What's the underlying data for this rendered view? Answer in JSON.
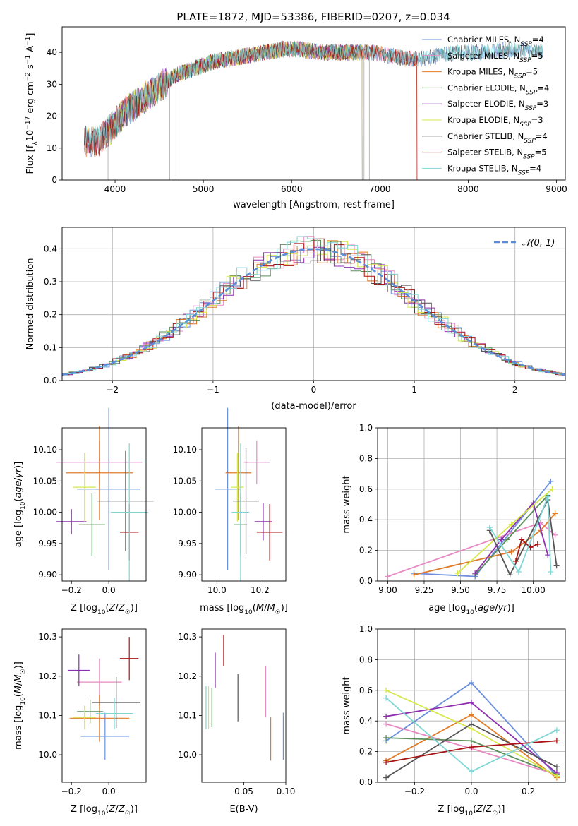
{
  "figure": {
    "title": "PLATE=1872, MJD=53386, FIBERID=0207, z=0.034"
  },
  "colors": {
    "chabrier_miles": "#6a8fdc",
    "salpeter_miles": "#e78ac3",
    "kroupa_miles": "#e07b28",
    "chabrier_elodie": "#5a8f5a",
    "salpeter_elodie": "#8e2fb0",
    "kroupa_elodie": "#d6e84a",
    "chabrier_stelib": "#555555",
    "salpeter_stelib": "#a81414",
    "kroupa_stelib": "#7fd6d6",
    "gaussian": "#5b8ed6",
    "grid": "#b0b0b0"
  },
  "chart_data": [
    {
      "id": "spectrum",
      "type": "line",
      "title": "PLATE=1872, MJD=53386, FIBERID=0207, z=0.034",
      "xlabel": "wavelength [Angstrom, rest frame]",
      "ylabel": "Flux [f_λ 10^-17 erg cm^-2 s^-1 A^-1]",
      "xlim": [
        3400,
        9100
      ],
      "ylim": [
        0,
        48
      ],
      "xticks": [
        4000,
        5000,
        6000,
        7000,
        8000,
        9000
      ],
      "yticks": [
        0,
        10,
        20,
        30,
        40
      ],
      "grid": false,
      "legend_position": "right",
      "series": [
        {
          "name": "Chabrier MILES, N_SSP=4",
          "color_key": "chabrier_miles",
          "range": [
            3650,
            8850
          ]
        },
        {
          "name": "Salpeter MILES, N_SSP=5",
          "color_key": "salpeter_miles",
          "range": [
            3650,
            7420
          ]
        },
        {
          "name": "Kroupa MILES, N_SSP=5",
          "color_key": "kroupa_miles",
          "range": [
            3650,
            7420
          ]
        },
        {
          "name": "Chabrier ELODIE, N_SSP=4",
          "color_key": "chabrier_elodie",
          "range": [
            3900,
            6800
          ]
        },
        {
          "name": "Salpeter ELODIE, N_SSP=3",
          "color_key": "salpeter_elodie",
          "range": [
            3900,
            6800
          ]
        },
        {
          "name": "Kroupa ELODIE, N_SSP=3",
          "color_key": "kroupa_elodie",
          "range": [
            3900,
            6800
          ]
        },
        {
          "name": "Chabrier STELIB, N_SSP=4",
          "color_key": "chabrier_stelib",
          "range": [
            3650,
            8850
          ]
        },
        {
          "name": "Salpeter STELIB, N_SSP=5",
          "color_key": "salpeter_stelib",
          "range": [
            3650,
            7420
          ]
        },
        {
          "name": "Kroupa STELIB, N_SSP=4",
          "color_key": "kroupa_stelib",
          "range": [
            3650,
            8850
          ]
        }
      ],
      "continuum": [
        [
          3650,
          12
        ],
        [
          3800,
          12
        ],
        [
          3950,
          16
        ],
        [
          4100,
          21
        ],
        [
          4300,
          25
        ],
        [
          4500,
          29
        ],
        [
          4700,
          33
        ],
        [
          4900,
          35
        ],
        [
          5100,
          37
        ],
        [
          5300,
          38
        ],
        [
          5500,
          39
        ],
        [
          5700,
          40
        ],
        [
          5900,
          41
        ],
        [
          6100,
          41
        ],
        [
          6300,
          40
        ],
        [
          6500,
          40
        ],
        [
          6700,
          40
        ],
        [
          6900,
          40
        ],
        [
          7100,
          39
        ],
        [
          7300,
          38
        ],
        [
          7500,
          38
        ],
        [
          7700,
          39
        ],
        [
          7900,
          40
        ],
        [
          8200,
          40
        ],
        [
          8500,
          41
        ],
        [
          8850,
          40
        ]
      ]
    },
    {
      "id": "residuals",
      "type": "histogram",
      "xlabel": "(data-model)/error",
      "ylabel": "Normed distribution",
      "xlim": [
        -2.5,
        2.5
      ],
      "ylim": [
        0,
        0.465
      ],
      "xticks": [
        -2,
        -1,
        0,
        1,
        2
      ],
      "yticks": [
        0.0,
        0.1,
        0.2,
        0.3,
        0.4
      ],
      "grid": true,
      "legend_position": "top-right",
      "legend": [
        "𝒩(0, 1)"
      ],
      "bin_width": 0.1
    },
    {
      "id": "age_vs_Z",
      "type": "scatter",
      "xlabel": "Z [log10(Z/Z☉)]",
      "ylabel": "age  [log10(age/yr)]",
      "xlim": [
        -0.25,
        0.2
      ],
      "ylim": [
        9.89,
        10.135
      ],
      "xticks": [
        -0.2,
        0.0
      ],
      "yticks": [
        9.9,
        9.95,
        10.0,
        10.05,
        10.1
      ],
      "points": [
        {
          "key": "chabrier_miles",
          "x": 0.0,
          "xerr": 0.17,
          "y": 10.037,
          "yerr": 0.13
        },
        {
          "key": "salpeter_miles",
          "x": -0.05,
          "xerr": 0.23,
          "y": 10.08,
          "yerr": 0.035
        },
        {
          "key": "kroupa_miles",
          "x": -0.05,
          "xerr": 0.18,
          "y": 10.063,
          "yerr": 0.075
        },
        {
          "key": "chabrier_elodie",
          "x": -0.09,
          "xerr": 0.07,
          "y": 9.98,
          "yerr": 0.05
        },
        {
          "key": "salpeter_elodie",
          "x": -0.2,
          "xerr": 0.08,
          "y": 9.985,
          "yerr": 0.02
        },
        {
          "key": "kroupa_elodie",
          "x": -0.13,
          "xerr": 0.06,
          "y": 10.04,
          "yerr": 0.055
        },
        {
          "key": "chabrier_stelib",
          "x": 0.09,
          "xerr": 0.15,
          "y": 10.018,
          "yerr": 0.08
        },
        {
          "key": "salpeter_stelib",
          "x": 0.11,
          "xerr": 0.05,
          "y": 9.968,
          "yerr": 0.045
        },
        {
          "key": "kroupa_stelib",
          "x": 0.11,
          "xerr": 0.1,
          "y": 10.0,
          "yerr": 0.11
        }
      ]
    },
    {
      "id": "age_vs_mass",
      "type": "scatter",
      "xlabel": "mass [log10(M/M☉)]",
      "ylabel": "",
      "xlim": [
        9.93,
        10.32
      ],
      "ylim": [
        9.89,
        10.135
      ],
      "xticks": [
        10.0,
        10.2
      ],
      "yticks": [
        9.9,
        9.95,
        10.0,
        10.05,
        10.1
      ],
      "points": [
        {
          "key": "chabrier_miles",
          "x": 10.05,
          "xerr": 0.06,
          "y": 10.037,
          "yerr": 0.13
        },
        {
          "key": "salpeter_miles",
          "x": 10.185,
          "xerr": 0.06,
          "y": 10.08,
          "yerr": 0.035
        },
        {
          "key": "kroupa_miles",
          "x": 10.1,
          "xerr": 0.06,
          "y": 10.063,
          "yerr": 0.075
        },
        {
          "key": "chabrier_elodie",
          "x": 10.11,
          "xerr": 0.03,
          "y": 9.98,
          "yerr": 0.05
        },
        {
          "key": "salpeter_elodie",
          "x": 10.215,
          "xerr": 0.04,
          "y": 9.985,
          "yerr": 0.03
        },
        {
          "key": "kroupa_elodie",
          "x": 10.095,
          "xerr": 0.03,
          "y": 10.04,
          "yerr": 0.055
        },
        {
          "key": "chabrier_stelib",
          "x": 10.135,
          "xerr": 0.06,
          "y": 10.018,
          "yerr": 0.085
        },
        {
          "key": "salpeter_stelib",
          "x": 10.245,
          "xerr": 0.06,
          "y": 9.968,
          "yerr": 0.045
        },
        {
          "key": "kroupa_stelib",
          "x": 10.11,
          "xerr": 0.04,
          "y": 10.0,
          "yerr": 0.11
        }
      ]
    },
    {
      "id": "weights_vs_age",
      "type": "line",
      "xlabel": "age  [log10(age/yr)]",
      "ylabel": "mass weight",
      "xlim": [
        8.93,
        10.22
      ],
      "ylim": [
        0.0,
        1.0
      ],
      "xticks": [
        9.0,
        9.25,
        9.5,
        9.75,
        10.0
      ],
      "yticks": [
        0.0,
        0.2,
        0.4,
        0.6,
        0.8,
        1.0
      ],
      "grid": true,
      "series": [
        {
          "key": "chabrier_miles",
          "x": [
            9.18,
            9.6,
            10.12
          ],
          "y": [
            0.05,
            0.03,
            0.65
          ]
        },
        {
          "key": "salpeter_miles",
          "x": [
            9.0,
            10.05,
            10.15
          ],
          "y": [
            0.03,
            0.38,
            0.3
          ]
        },
        {
          "key": "kroupa_miles",
          "x": [
            9.18,
            9.85,
            10.05,
            10.15
          ],
          "y": [
            0.04,
            0.19,
            0.33,
            0.44
          ]
        },
        {
          "key": "chabrier_elodie",
          "x": [
            9.6,
            9.82,
            10.1
          ],
          "y": [
            0.04,
            0.27,
            0.56
          ]
        },
        {
          "key": "salpeter_elodie",
          "x": [
            9.6,
            9.78,
            10.0,
            10.1
          ],
          "y": [
            0.05,
            0.27,
            0.51,
            0.17
          ]
        },
        {
          "key": "kroupa_elodie",
          "x": [
            9.48,
            9.85,
            10.13
          ],
          "y": [
            0.05,
            0.37,
            0.6
          ]
        },
        {
          "key": "chabrier_stelib",
          "x": [
            9.7,
            9.84,
            10.1,
            10.16
          ],
          "y": [
            0.33,
            0.04,
            0.53,
            0.1
          ]
        },
        {
          "key": "salpeter_stelib",
          "x": [
            9.88,
            9.92,
            9.98,
            10.03
          ],
          "y": [
            0.13,
            0.27,
            0.22,
            0.24
          ]
        },
        {
          "key": "kroupa_stelib",
          "x": [
            9.7,
            9.9,
            10.1,
            10.12
          ],
          "y": [
            0.35,
            0.06,
            0.55,
            0.06
          ]
        }
      ]
    },
    {
      "id": "mass_vs_Z",
      "type": "scatter",
      "xlabel": "Z [log10(Z/Z☉)]",
      "ylabel": "mass [log10(M/M☉)]",
      "xlim": [
        -0.25,
        0.2
      ],
      "ylim": [
        9.93,
        10.32
      ],
      "xticks": [
        -0.2,
        0.0
      ],
      "yticks": [
        10.0,
        10.1,
        10.2,
        10.3
      ],
      "points": [
        {
          "key": "chabrier_miles",
          "x": -0.02,
          "xerr": 0.13,
          "y": 10.047,
          "yerr": 0.06
        },
        {
          "key": "salpeter_miles",
          "x": -0.05,
          "xerr": 0.12,
          "y": 10.185,
          "yerr": 0.06
        },
        {
          "key": "kroupa_miles",
          "x": -0.05,
          "xerr": 0.16,
          "y": 10.093,
          "yerr": 0.06
        },
        {
          "key": "chabrier_elodie",
          "x": -0.1,
          "xerr": 0.07,
          "y": 10.11,
          "yerr": 0.03
        },
        {
          "key": "salpeter_elodie",
          "x": -0.16,
          "xerr": 0.06,
          "y": 10.215,
          "yerr": 0.04
        },
        {
          "key": "kroupa_elodie",
          "x": -0.13,
          "xerr": 0.06,
          "y": 10.095,
          "yerr": 0.03
        },
        {
          "key": "chabrier_stelib",
          "x": 0.04,
          "xerr": 0.13,
          "y": 10.133,
          "yerr": 0.065
        },
        {
          "key": "salpeter_stelib",
          "x": 0.11,
          "xerr": 0.05,
          "y": 10.245,
          "yerr": 0.055
        },
        {
          "key": "kroupa_stelib",
          "x": 0.03,
          "xerr": 0.1,
          "y": 10.105,
          "yerr": 0.04
        }
      ]
    },
    {
      "id": "mass_vs_EBV",
      "type": "scatter",
      "xlabel": "E(B-V)",
      "ylabel": "",
      "xlim": [
        0.0,
        0.1
      ],
      "ylim": [
        9.93,
        10.32
      ],
      "xticks": [
        0.05,
        0.1
      ],
      "yticks": [
        10.0,
        10.1,
        10.2,
        10.3
      ],
      "points": [
        {
          "key": "chabrier_miles",
          "x": 0.097,
          "y": 10.047,
          "yerr": 0.06
        },
        {
          "key": "salpeter_miles",
          "x": 0.076,
          "y": 10.16,
          "yerr": 0.065
        },
        {
          "key": "kroupa_miles",
          "x": 0.082,
          "y": 10.04,
          "yerr": 0.055
        },
        {
          "key": "chabrier_elodie",
          "x": 0.012,
          "y": 10.12,
          "yerr": 0.05
        },
        {
          "key": "salpeter_elodie",
          "x": 0.016,
          "y": 10.215,
          "yerr": 0.045
        },
        {
          "key": "kroupa_elodie",
          "x": 0.008,
          "y": 10.12,
          "yerr": 0.055
        },
        {
          "key": "chabrier_stelib",
          "x": 0.043,
          "y": 10.145,
          "yerr": 0.06
        },
        {
          "key": "salpeter_stelib",
          "x": 0.026,
          "y": 10.265,
          "yerr": 0.04
        },
        {
          "key": "kroupa_stelib",
          "x": 0.005,
          "y": 10.12,
          "yerr": 0.055
        }
      ]
    },
    {
      "id": "weights_vs_Z",
      "type": "line",
      "xlabel": "Z [log10(Z/Z☉)]",
      "ylabel": "mass weight",
      "xlim": [
        -0.33,
        0.33
      ],
      "ylim": [
        0.0,
        1.0
      ],
      "xticks": [
        -0.2,
        0.0,
        0.2
      ],
      "yticks": [
        0.0,
        0.2,
        0.4,
        0.6,
        0.8,
        1.0
      ],
      "grid": true,
      "series": [
        {
          "key": "chabrier_miles",
          "x": [
            -0.3,
            0.0,
            0.3
          ],
          "y": [
            0.27,
            0.65,
            0.04
          ]
        },
        {
          "key": "salpeter_miles",
          "x": [
            -0.3,
            0.0,
            0.3
          ],
          "y": [
            0.38,
            0.22,
            0.05
          ]
        },
        {
          "key": "kroupa_miles",
          "x": [
            -0.3,
            0.0,
            0.3
          ],
          "y": [
            0.14,
            0.44,
            0.03
          ]
        },
        {
          "key": "chabrier_elodie",
          "x": [
            -0.3,
            0.0,
            0.3
          ],
          "y": [
            0.29,
            0.27,
            0.05
          ]
        },
        {
          "key": "salpeter_elodie",
          "x": [
            -0.3,
            0.0,
            0.3
          ],
          "y": [
            0.43,
            0.52,
            0.06
          ]
        },
        {
          "key": "kroupa_elodie",
          "x": [
            -0.3,
            0.0,
            0.3
          ],
          "y": [
            0.6,
            0.35,
            0.04
          ]
        },
        {
          "key": "chabrier_stelib",
          "x": [
            -0.3,
            0.0,
            0.3
          ],
          "y": [
            0.03,
            0.38,
            0.1
          ]
        },
        {
          "key": "salpeter_stelib",
          "x": [
            -0.3,
            0.0,
            0.3
          ],
          "y": [
            0.13,
            0.23,
            0.27
          ]
        },
        {
          "key": "kroupa_stelib",
          "x": [
            -0.3,
            0.0,
            0.3
          ],
          "y": [
            0.55,
            0.07,
            0.34
          ]
        }
      ]
    }
  ]
}
